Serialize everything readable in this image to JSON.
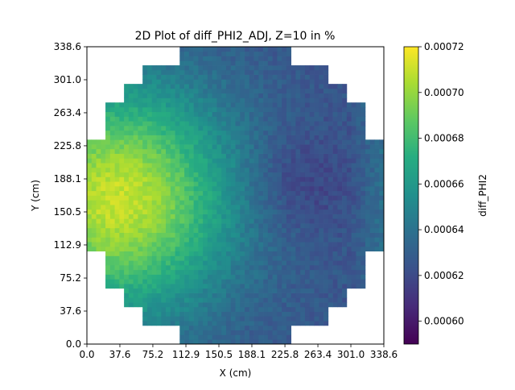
{
  "chart_data": {
    "type": "heatmap",
    "title": "2D Plot of diff_PHI2_ADJ, Z=10 in %",
    "xlabel": "X (cm)",
    "ylabel": "Y (cm)",
    "xlim": [
      0.0,
      338.6
    ],
    "ylim": [
      0.0,
      338.6
    ],
    "x_ticks": [
      "0.0",
      "37.6",
      "75.2",
      "112.9",
      "150.5",
      "188.1",
      "225.8",
      "263.4",
      "301.0",
      "338.6"
    ],
    "y_ticks": [
      "0.0",
      "37.6",
      "75.2",
      "112.9",
      "150.5",
      "188.1",
      "225.8",
      "263.4",
      "301.0",
      "338.6"
    ],
    "grid_cells": [
      64,
      64
    ],
    "domain": "circular core region, cells outside the core boundary are empty (white)",
    "colormap": "viridis",
    "colorbar": {
      "label": "diff_PHI2",
      "range": [
        0.00059,
        0.00072
      ],
      "ticks": [
        "0.00060",
        "0.00062",
        "0.00064",
        "0.00066",
        "0.00068",
        "0.00070",
        "0.00072"
      ]
    },
    "value_field": {
      "peak_value": 0.00071,
      "peak_location_xy": [
        35,
        165
      ],
      "min_value": 0.000625,
      "min_location_xy": [
        240,
        185
      ],
      "noise_amplitude": 5.5e-06
    }
  }
}
